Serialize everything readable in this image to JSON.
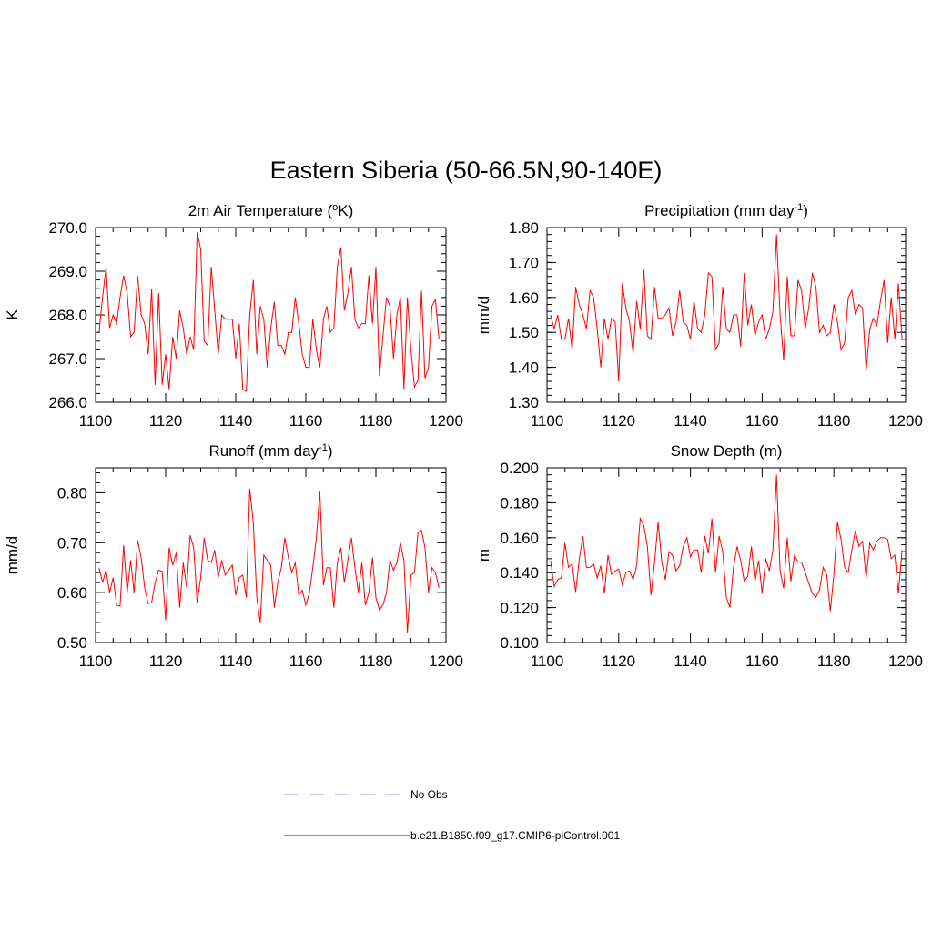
{
  "main_title": "Eastern Siberia (50-66.5N,90-140E)",
  "legend": {
    "obs_label": "No Obs",
    "obs_color": "#aaaaee",
    "model_label": "b.e21.B1850.f09_g17.CMIP6-piControl.001",
    "model_color": "#ff0000"
  },
  "chart_data": [
    {
      "type": "line",
      "title": "2m Air Temperature (",
      "title_sup": "o",
      "title_tail": "K)",
      "ylabel": "K",
      "xlim": [
        1100,
        1200
      ],
      "ylim": [
        266.0,
        270.0
      ],
      "xticks": [
        1100,
        1120,
        1140,
        1160,
        1180,
        1200
      ],
      "yticks": [
        "266.0",
        "267.0",
        "268.0",
        "269.0",
        "270.0"
      ],
      "series": [
        {
          "color": "#ff0000",
          "x_start": 1101,
          "values": [
            267.6,
            268.4,
            269.1,
            267.7,
            268.0,
            267.8,
            268.4,
            268.9,
            268.5,
            267.5,
            267.6,
            268.9,
            268.0,
            267.8,
            267.1,
            268.6,
            266.4,
            268.5,
            266.4,
            267.1,
            266.3,
            267.5,
            267.0,
            268.1,
            267.7,
            267.1,
            267.5,
            267.2,
            269.9,
            269.5,
            267.4,
            267.3,
            269.1,
            268.1,
            267.1,
            268.0,
            267.9,
            267.9,
            267.9,
            267.0,
            267.8,
            266.3,
            266.25,
            268.0,
            268.8,
            267.1,
            268.2,
            267.9,
            266.8,
            267.7,
            268.3,
            267.3,
            267.3,
            267.1,
            267.6,
            267.6,
            268.4,
            267.8,
            267.1,
            266.8,
            266.8,
            267.9,
            267.2,
            266.8,
            267.9,
            268.2,
            267.6,
            267.7,
            269.1,
            269.55,
            268.1,
            268.5,
            269.1,
            267.9,
            267.7,
            267.8,
            267.8,
            268.9,
            267.8,
            269.1,
            266.6,
            267.5,
            268.4,
            268.2,
            267.0,
            268.0,
            268.4,
            266.3,
            268.4,
            267.2,
            266.35,
            266.5,
            268.55,
            266.55,
            266.8,
            268.2,
            268.35,
            267.45
          ]
        }
      ]
    },
    {
      "type": "line",
      "title": "Precipitation (mm day",
      "title_sup": "-1",
      "title_tail": ")",
      "ylabel": "mm/d",
      "xlim": [
        1100,
        1200
      ],
      "ylim": [
        1.3,
        1.8
      ],
      "xticks": [
        1100,
        1120,
        1140,
        1160,
        1180,
        1200
      ],
      "yticks": [
        "1.30",
        "1.40",
        "1.50",
        "1.60",
        "1.70",
        "1.80"
      ],
      "series": [
        {
          "color": "#ff0000",
          "x_start": 1101,
          "values": [
            1.55,
            1.51,
            1.55,
            1.48,
            1.48,
            1.54,
            1.45,
            1.63,
            1.58,
            1.55,
            1.51,
            1.62,
            1.6,
            1.51,
            1.4,
            1.54,
            1.48,
            1.54,
            1.53,
            1.36,
            1.64,
            1.57,
            1.53,
            1.44,
            1.59,
            1.51,
            1.68,
            1.49,
            1.48,
            1.63,
            1.54,
            1.54,
            1.55,
            1.57,
            1.49,
            1.53,
            1.62,
            1.53,
            1.52,
            1.48,
            1.59,
            1.51,
            1.5,
            1.55,
            1.67,
            1.66,
            1.45,
            1.47,
            1.63,
            1.51,
            1.5,
            1.55,
            1.55,
            1.46,
            1.67,
            1.52,
            1.58,
            1.49,
            1.53,
            1.55,
            1.48,
            1.51,
            1.56,
            1.78,
            1.55,
            1.42,
            1.66,
            1.49,
            1.49,
            1.65,
            1.62,
            1.51,
            1.57,
            1.67,
            1.63,
            1.5,
            1.52,
            1.49,
            1.5,
            1.58,
            1.53,
            1.45,
            1.47,
            1.6,
            1.62,
            1.55,
            1.58,
            1.57,
            1.39,
            1.51,
            1.54,
            1.52,
            1.59,
            1.65,
            1.47,
            1.6,
            1.48,
            1.64,
            1.48
          ]
        }
      ]
    },
    {
      "type": "line",
      "title": "Runoff (mm day",
      "title_sup": "-1",
      "title_tail": ")",
      "ylabel": "mm/d",
      "xlim": [
        1100,
        1200
      ],
      "ylim": [
        0.5,
        0.85
      ],
      "xticks": [
        1100,
        1120,
        1140,
        1160,
        1180,
        1200
      ],
      "yticks": [
        "0.50",
        "0.60",
        "0.70",
        "0.80"
      ],
      "series": [
        {
          "color": "#ff0000",
          "x_start": 1101,
          "values": [
            0.65,
            0.62,
            0.645,
            0.6,
            0.63,
            0.575,
            0.573,
            0.695,
            0.6,
            0.665,
            0.6,
            0.705,
            0.67,
            0.61,
            0.578,
            0.58,
            0.62,
            0.645,
            0.643,
            0.545,
            0.69,
            0.655,
            0.68,
            0.57,
            0.66,
            0.61,
            0.715,
            0.69,
            0.58,
            0.63,
            0.71,
            0.665,
            0.66,
            0.685,
            0.63,
            0.665,
            0.635,
            0.645,
            0.655,
            0.595,
            0.63,
            0.635,
            0.59,
            0.808,
            0.74,
            0.59,
            0.54,
            0.675,
            0.665,
            0.655,
            0.57,
            0.62,
            0.65,
            0.71,
            0.67,
            0.64,
            0.66,
            0.595,
            0.605,
            0.575,
            0.6,
            0.65,
            0.71,
            0.803,
            0.615,
            0.65,
            0.65,
            0.57,
            0.66,
            0.69,
            0.62,
            0.665,
            0.71,
            0.65,
            0.6,
            0.66,
            0.575,
            0.6,
            0.67,
            0.59,
            0.565,
            0.575,
            0.6,
            0.665,
            0.645,
            0.66,
            0.7,
            0.665,
            0.52,
            0.635,
            0.64,
            0.72,
            0.725,
            0.69,
            0.6,
            0.65,
            0.64,
            0.61
          ]
        }
      ]
    },
    {
      "type": "line",
      "title": "Snow Depth (m)",
      "title_sup": "",
      "title_tail": "",
      "ylabel": "m",
      "xlim": [
        1100,
        1200
      ],
      "ylim": [
        0.1,
        0.2
      ],
      "xticks": [
        1100,
        1120,
        1140,
        1160,
        1180,
        1200
      ],
      "yticks": [
        "0.100",
        "0.120",
        "0.140",
        "0.160",
        "0.180",
        "0.200"
      ],
      "series": [
        {
          "color": "#ff0000",
          "x_start": 1101,
          "values": [
            0.147,
            0.132,
            0.136,
            0.137,
            0.157,
            0.143,
            0.145,
            0.129,
            0.148,
            0.161,
            0.143,
            0.143,
            0.145,
            0.137,
            0.144,
            0.128,
            0.15,
            0.139,
            0.141,
            0.142,
            0.133,
            0.14,
            0.141,
            0.136,
            0.144,
            0.171,
            0.167,
            0.155,
            0.127,
            0.146,
            0.169,
            0.146,
            0.136,
            0.152,
            0.15,
            0.141,
            0.144,
            0.155,
            0.16,
            0.149,
            0.153,
            0.153,
            0.14,
            0.161,
            0.151,
            0.171,
            0.14,
            0.161,
            0.152,
            0.126,
            0.12,
            0.143,
            0.155,
            0.147,
            0.135,
            0.138,
            0.155,
            0.135,
            0.147,
            0.128,
            0.148,
            0.141,
            0.153,
            0.196,
            0.141,
            0.131,
            0.16,
            0.135,
            0.15,
            0.146,
            0.146,
            0.14,
            0.134,
            0.128,
            0.126,
            0.13,
            0.143,
            0.139,
            0.118,
            0.139,
            0.169,
            0.159,
            0.143,
            0.14,
            0.153,
            0.164,
            0.155,
            0.158,
            0.137,
            0.157,
            0.153,
            0.158,
            0.16,
            0.16,
            0.159,
            0.148,
            0.15,
            0.128,
            0.153
          ]
        }
      ]
    }
  ]
}
